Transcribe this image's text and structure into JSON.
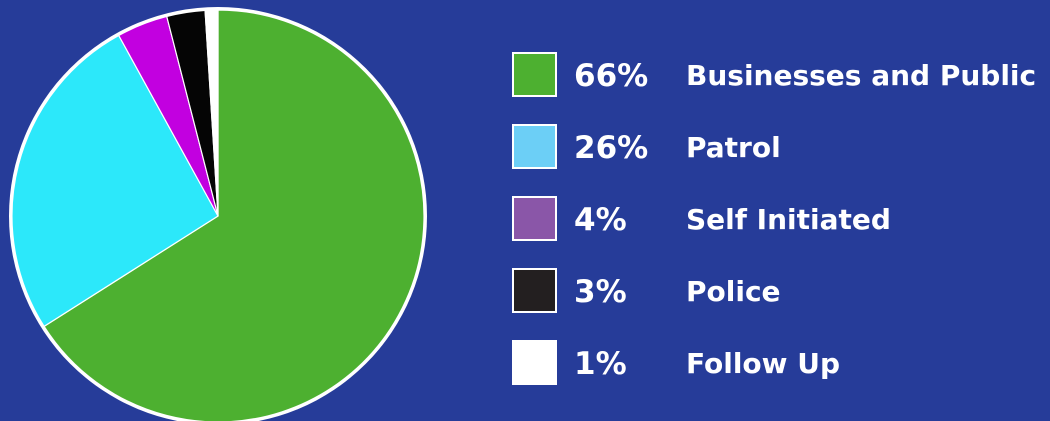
{
  "chart_data": {
    "type": "pie",
    "title": "",
    "background": "#263C99",
    "slices": [
      {
        "label": "Businesses and Public",
        "pct_label": "66%",
        "value": 66,
        "color": "#4DB030"
      },
      {
        "label": "Patrol",
        "pct_label": "26%",
        "value": 26,
        "color": "#2CE8FA"
      },
      {
        "label": "Self Initiated",
        "pct_label": "4%",
        "value": 4,
        "color": "#C200E0"
      },
      {
        "label": "Police",
        "pct_label": "3%",
        "value": 3,
        "color": "#050505"
      },
      {
        "label": "Follow Up",
        "pct_label": "1%",
        "value": 1,
        "color": "#FFFFFF"
      }
    ],
    "legend_colors": [
      "#4DB030",
      "#6CCFF6",
      "#8A56A8",
      "#231F20",
      "#FFFFFF"
    ],
    "legend_position": "right"
  }
}
